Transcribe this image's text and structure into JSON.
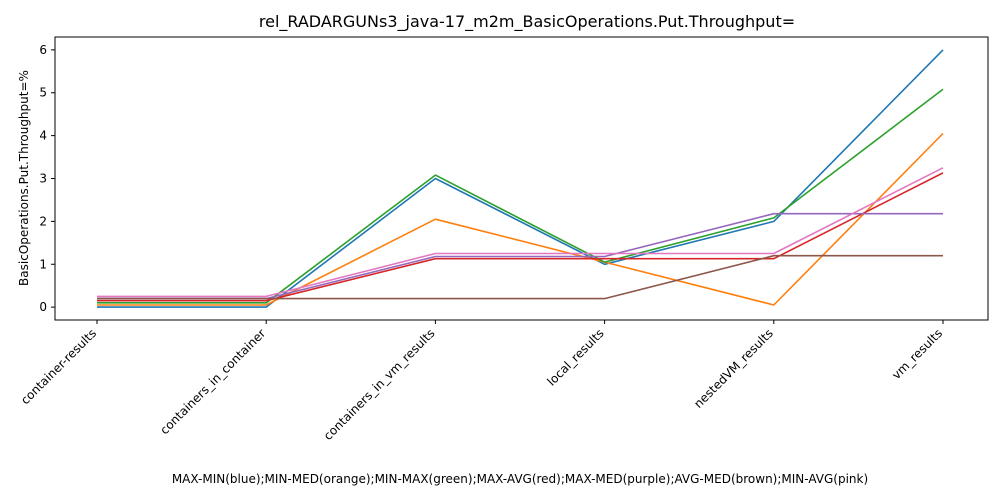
{
  "chart_data": {
    "type": "line",
    "title": "rel_RADARGUNs3_java-17_m2m_BasicOperations.Put.Throughput=",
    "xlabel": "MAX-MIN(blue);MIN-MED(orange);MIN-MAX(green);MAX-AVG(red);MAX-MED(purple);AVG-MED(brown);MIN-AVG(pink)",
    "ylabel": "BasicOperations.Put.Throughput=%",
    "categories": [
      "container-results",
      "containers_in_container",
      "containers_in_vm_results",
      "local_results",
      "nestedVM_results",
      "vm_results"
    ],
    "ylim": [
      -0.3,
      6.3
    ],
    "yticks": [
      0,
      1,
      2,
      3,
      4,
      5,
      6
    ],
    "grid": false,
    "series": [
      {
        "name": "MAX-MIN",
        "color": "#1f77b4",
        "values": [
          0.0,
          0.0,
          3.0,
          1.0,
          2.0,
          6.0
        ]
      },
      {
        "name": "MIN-MED",
        "color": "#ff7f0e",
        "values": [
          0.05,
          0.05,
          2.05,
          1.05,
          0.05,
          4.05
        ]
      },
      {
        "name": "MIN-MAX",
        "color": "#2ca02c",
        "values": [
          0.1,
          0.1,
          3.08,
          1.05,
          2.08,
          5.08
        ]
      },
      {
        "name": "MAX-AVG",
        "color": "#d62728",
        "values": [
          0.15,
          0.15,
          1.13,
          1.13,
          1.13,
          3.13
        ]
      },
      {
        "name": "MAX-MED",
        "color": "#9467bd",
        "values": [
          0.2,
          0.2,
          1.18,
          1.18,
          2.18,
          2.18
        ]
      },
      {
        "name": "AVG-MED",
        "color": "#8c564b",
        "values": [
          0.2,
          0.2,
          0.2,
          0.2,
          1.2,
          1.2
        ]
      },
      {
        "name": "MIN-AVG",
        "color": "#e377c2",
        "values": [
          0.25,
          0.25,
          1.25,
          1.25,
          1.25,
          3.25
        ]
      }
    ]
  }
}
